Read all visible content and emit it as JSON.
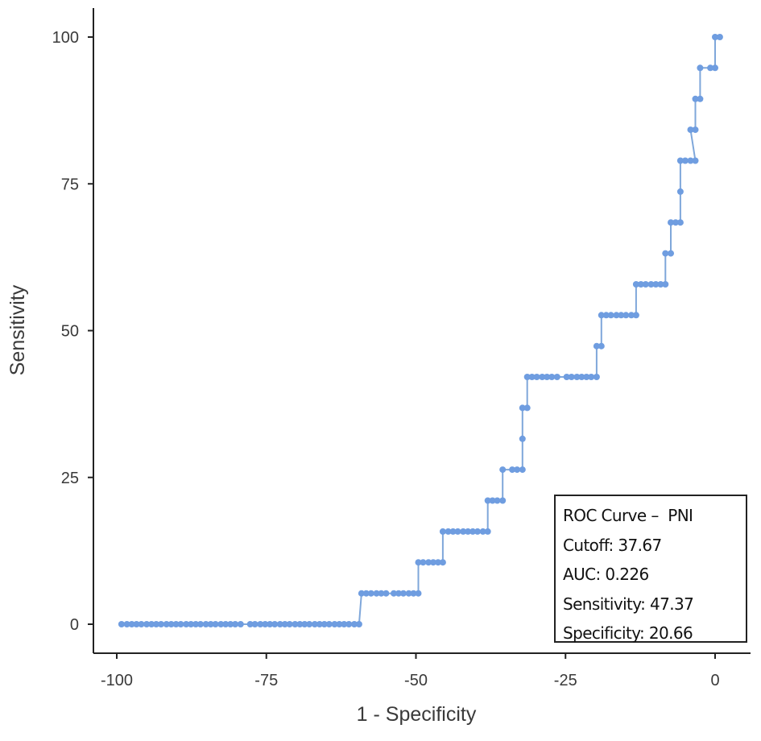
{
  "chart_data": {
    "type": "line",
    "title": "",
    "xlabel": "1 - Specificity",
    "ylabel": "Sensitivity",
    "xlim": [
      -101.5,
      6
    ],
    "ylim": [
      -4.9,
      105
    ],
    "grid": false,
    "legend": "none",
    "x_ticks": [
      -100,
      -75,
      -50,
      -25,
      0
    ],
    "x_tick_labels": [
      "-100",
      "-75",
      "-50",
      "-25",
      "0"
    ],
    "y_ticks": [
      0,
      25,
      50,
      75,
      100
    ],
    "y_tick_labels": [
      "0",
      "25",
      "50",
      "75",
      "100"
    ],
    "series": [
      {
        "name": "ROC Curve - PNI",
        "color": "#6f9de0",
        "line_color": "#7fa7da",
        "points": [
          [
            -99.2,
            0
          ],
          [
            -98.3,
            0
          ],
          [
            -97.5,
            0
          ],
          [
            -96.7,
            0
          ],
          [
            -95.9,
            0
          ],
          [
            -95.0,
            0
          ],
          [
            -94.2,
            0
          ],
          [
            -93.4,
            0
          ],
          [
            -92.6,
            0
          ],
          [
            -91.7,
            0
          ],
          [
            -90.9,
            0
          ],
          [
            -90.1,
            0
          ],
          [
            -89.3,
            0
          ],
          [
            -88.4,
            0
          ],
          [
            -87.6,
            0
          ],
          [
            -86.8,
            0
          ],
          [
            -86.0,
            0
          ],
          [
            -85.1,
            0
          ],
          [
            -84.3,
            0
          ],
          [
            -83.5,
            0
          ],
          [
            -82.6,
            0
          ],
          [
            -81.8,
            0
          ],
          [
            -81.0,
            0
          ],
          [
            -80.2,
            0
          ],
          [
            -79.3,
            0
          ],
          [
            -77.7,
            0
          ],
          [
            -76.9,
            0
          ],
          [
            -76.0,
            0
          ],
          [
            -75.2,
            0
          ],
          [
            -74.4,
            0
          ],
          [
            -73.6,
            0
          ],
          [
            -72.7,
            0
          ],
          [
            -71.9,
            0
          ],
          [
            -71.1,
            0
          ],
          [
            -70.2,
            0
          ],
          [
            -69.4,
            0
          ],
          [
            -68.6,
            0
          ],
          [
            -67.8,
            0
          ],
          [
            -66.9,
            0
          ],
          [
            -66.1,
            0
          ],
          [
            -65.3,
            0
          ],
          [
            -64.5,
            0
          ],
          [
            -63.6,
            0
          ],
          [
            -62.8,
            0
          ],
          [
            -62.0,
            0
          ],
          [
            -61.2,
            0
          ],
          [
            -60.3,
            0
          ],
          [
            -59.5,
            0
          ],
          [
            -59.1,
            5.26
          ],
          [
            -58.3,
            5.26
          ],
          [
            -57.5,
            5.26
          ],
          [
            -56.6,
            5.26
          ],
          [
            -55.8,
            5.26
          ],
          [
            -55.0,
            5.26
          ],
          [
            -53.7,
            5.26
          ],
          [
            -52.9,
            5.26
          ],
          [
            -52.1,
            5.26
          ],
          [
            -51.2,
            5.26
          ],
          [
            -50.4,
            5.26
          ],
          [
            -49.6,
            5.26
          ],
          [
            -49.6,
            10.53
          ],
          [
            -48.8,
            10.53
          ],
          [
            -47.9,
            10.53
          ],
          [
            -47.1,
            10.53
          ],
          [
            -46.3,
            10.53
          ],
          [
            -45.5,
            10.53
          ],
          [
            -45.5,
            15.79
          ],
          [
            -44.6,
            15.79
          ],
          [
            -43.8,
            15.79
          ],
          [
            -43.0,
            15.79
          ],
          [
            -42.1,
            15.79
          ],
          [
            -41.3,
            15.79
          ],
          [
            -40.5,
            15.79
          ],
          [
            -39.7,
            15.79
          ],
          [
            -38.8,
            15.79
          ],
          [
            -38.0,
            15.79
          ],
          [
            -38.0,
            21.05
          ],
          [
            -37.2,
            21.05
          ],
          [
            -36.4,
            21.05
          ],
          [
            -35.5,
            21.05
          ],
          [
            -35.5,
            26.32
          ],
          [
            -33.9,
            26.32
          ],
          [
            -33.1,
            26.32
          ],
          [
            -32.2,
            26.32
          ],
          [
            -32.2,
            31.58
          ],
          [
            -32.2,
            36.84
          ],
          [
            -31.4,
            36.84
          ],
          [
            -31.4,
            42.11
          ],
          [
            -30.6,
            42.11
          ],
          [
            -29.8,
            42.11
          ],
          [
            -28.9,
            42.11
          ],
          [
            -28.1,
            42.11
          ],
          [
            -27.3,
            42.11
          ],
          [
            -26.4,
            42.11
          ],
          [
            -24.8,
            42.11
          ],
          [
            -24.0,
            42.11
          ],
          [
            -23.1,
            42.11
          ],
          [
            -22.3,
            42.11
          ],
          [
            -21.5,
            42.11
          ],
          [
            -20.7,
            42.11
          ],
          [
            -19.8,
            42.11
          ],
          [
            -19.8,
            47.37
          ],
          [
            -19.0,
            47.37
          ],
          [
            -19.0,
            52.63
          ],
          [
            -18.2,
            52.63
          ],
          [
            -17.4,
            52.63
          ],
          [
            -16.5,
            52.63
          ],
          [
            -15.7,
            52.63
          ],
          [
            -14.9,
            52.63
          ],
          [
            -14.0,
            52.63
          ],
          [
            -13.2,
            52.63
          ],
          [
            -13.2,
            57.89
          ],
          [
            -12.4,
            57.89
          ],
          [
            -11.6,
            57.89
          ],
          [
            -10.7,
            57.89
          ],
          [
            -9.9,
            57.89
          ],
          [
            -9.1,
            57.89
          ],
          [
            -8.3,
            57.89
          ],
          [
            -8.3,
            63.16
          ],
          [
            -7.4,
            63.16
          ],
          [
            -7.4,
            68.42
          ],
          [
            -6.6,
            68.42
          ],
          [
            -5.8,
            68.42
          ],
          [
            -5.8,
            73.68
          ],
          [
            -5.8,
            78.95
          ],
          [
            -5.0,
            78.95
          ],
          [
            -4.1,
            78.95
          ],
          [
            -3.3,
            78.95
          ],
          [
            -4.1,
            84.21
          ],
          [
            -3.3,
            84.21
          ],
          [
            -3.3,
            89.47
          ],
          [
            -2.5,
            89.47
          ],
          [
            -2.5,
            94.74
          ],
          [
            -0.8,
            94.74
          ],
          [
            0.0,
            94.74
          ],
          [
            0.0,
            100
          ],
          [
            0.8,
            100
          ]
        ]
      }
    ],
    "annotation": {
      "lines": [
        "ROC Curve –  PNI",
        "Cutoff: 37.67",
        "AUC: 0.226",
        "Sensitivity: 47.37",
        "Specificity: 20.66"
      ],
      "placement": "bottom-right",
      "values": {
        "cutoff": 37.67,
        "auc": 0.226,
        "sensitivity": 47.37,
        "specificity": 20.66
      }
    }
  }
}
